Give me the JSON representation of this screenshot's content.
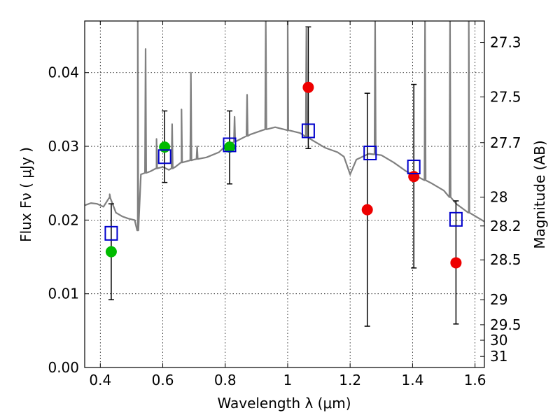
{
  "chart_data": {
    "type": "scatter",
    "title": "",
    "xlabel": "Wavelength  λ (μm)",
    "ylabel": "Flux  Fν  ( μJy )",
    "y2label": "Magnitude (AB)",
    "xlim": [
      0.35,
      1.63
    ],
    "ylim": [
      0.0,
      0.047
    ],
    "grid": true,
    "x_ticks": [
      0.4,
      0.6,
      0.8,
      1.0,
      1.2,
      1.4,
      1.6
    ],
    "x_tick_labels": [
      "0.4",
      "0.6",
      "0.8",
      "1",
      "1.2",
      "1.4",
      "1.6"
    ],
    "y_ticks": [
      0.0,
      0.01,
      0.02,
      0.03,
      0.04
    ],
    "y_tick_labels": [
      "0.00",
      "0.01",
      "0.02",
      "0.03",
      "0.04"
    ],
    "mag_ticks": [
      {
        "label": "27.3",
        "flux": 0.0441
      },
      {
        "label": "27.5",
        "flux": 0.0367
      },
      {
        "label": "27.7",
        "flux": 0.0305
      },
      {
        "label": "28",
        "flux": 0.0231
      },
      {
        "label": "28.2",
        "flux": 0.0192
      },
      {
        "label": "28.5",
        "flux": 0.0146
      },
      {
        "label": "29",
        "flux": 0.0092
      },
      {
        "label": "29.5",
        "flux": 0.0058
      },
      {
        "label": "30",
        "flux": 0.0037
      },
      {
        "label": "31",
        "flux": 0.0015
      }
    ],
    "observed_points": [
      {
        "x": 0.435,
        "y": 0.0157,
        "color": "#00bb00",
        "yerr_low": 0.0092,
        "yerr_high": 0.0222
      },
      {
        "x": 0.606,
        "y": 0.0299,
        "color": "#00bb00",
        "yerr_low": 0.0251,
        "yerr_high": 0.0348
      },
      {
        "x": 0.814,
        "y": 0.0299,
        "color": "#00bb00",
        "yerr_low": 0.0249,
        "yerr_high": 0.0348
      },
      {
        "x": 1.066,
        "y": 0.038,
        "color": "#ee0000",
        "yerr_low": 0.0297,
        "yerr_high": 0.0462
      },
      {
        "x": 1.255,
        "y": 0.0214,
        "color": "#ee0000",
        "yerr_low": 0.0056,
        "yerr_high": 0.0372
      },
      {
        "x": 1.404,
        "y": 0.0259,
        "color": "#ee0000",
        "yerr_low": 0.0135,
        "yerr_high": 0.0384
      },
      {
        "x": 1.539,
        "y": 0.0142,
        "color": "#ee0000",
        "yerr_low": 0.0059,
        "yerr_high": 0.0226
      }
    ],
    "model_points": [
      {
        "x": 0.435,
        "y": 0.0182
      },
      {
        "x": 0.606,
        "y": 0.0286
      },
      {
        "x": 0.814,
        "y": 0.0302
      },
      {
        "x": 1.066,
        "y": 0.0321
      },
      {
        "x": 1.264,
        "y": 0.0291
      },
      {
        "x": 1.404,
        "y": 0.0272
      },
      {
        "x": 1.539,
        "y": 0.0201
      }
    ],
    "sed_continuum": [
      [
        0.35,
        0.022
      ],
      [
        0.37,
        0.0223
      ],
      [
        0.39,
        0.0222
      ],
      [
        0.41,
        0.0218
      ],
      [
        0.43,
        0.023
      ],
      [
        0.45,
        0.021
      ],
      [
        0.47,
        0.0205
      ],
      [
        0.49,
        0.0202
      ],
      [
        0.51,
        0.02
      ],
      [
        0.52,
        0.0186
      ],
      [
        0.53,
        0.0262
      ],
      [
        0.56,
        0.0266
      ],
      [
        0.58,
        0.027
      ],
      [
        0.6,
        0.0272
      ],
      [
        0.62,
        0.0268
      ],
      [
        0.64,
        0.0272
      ],
      [
        0.66,
        0.0278
      ],
      [
        0.7,
        0.0282
      ],
      [
        0.74,
        0.0285
      ],
      [
        0.78,
        0.0292
      ],
      [
        0.8,
        0.03
      ],
      [
        0.84,
        0.0308
      ],
      [
        0.88,
        0.0316
      ],
      [
        0.92,
        0.0322
      ],
      [
        0.96,
        0.0326
      ],
      [
        1.0,
        0.0322
      ],
      [
        1.04,
        0.0318
      ],
      [
        1.08,
        0.0308
      ],
      [
        1.12,
        0.0298
      ],
      [
        1.16,
        0.0292
      ],
      [
        1.18,
        0.0286
      ],
      [
        1.2,
        0.0262
      ],
      [
        1.22,
        0.0282
      ],
      [
        1.26,
        0.029
      ],
      [
        1.3,
        0.0288
      ],
      [
        1.34,
        0.0278
      ],
      [
        1.38,
        0.0266
      ],
      [
        1.42,
        0.0258
      ],
      [
        1.46,
        0.025
      ],
      [
        1.5,
        0.024
      ],
      [
        1.54,
        0.0222
      ],
      [
        1.58,
        0.021
      ],
      [
        1.63,
        0.0198
      ]
    ],
    "sed_emission_lines": [
      {
        "x": 0.43,
        "peak": 0.0235
      },
      {
        "x": 0.52,
        "peak": 0.047
      },
      {
        "x": 0.545,
        "peak": 0.0432
      },
      {
        "x": 0.58,
        "peak": 0.031
      },
      {
        "x": 0.63,
        "peak": 0.033
      },
      {
        "x": 0.66,
        "peak": 0.035
      },
      {
        "x": 0.69,
        "peak": 0.04
      },
      {
        "x": 0.71,
        "peak": 0.03
      },
      {
        "x": 0.83,
        "peak": 0.034
      },
      {
        "x": 0.87,
        "peak": 0.037
      },
      {
        "x": 0.93,
        "peak": 0.047
      },
      {
        "x": 1.0,
        "peak": 0.047
      },
      {
        "x": 1.06,
        "peak": 0.046
      },
      {
        "x": 1.28,
        "peak": 0.047
      },
      {
        "x": 1.44,
        "peak": 0.047
      },
      {
        "x": 1.52,
        "peak": 0.047
      },
      {
        "x": 1.58,
        "peak": 0.047
      }
    ]
  }
}
